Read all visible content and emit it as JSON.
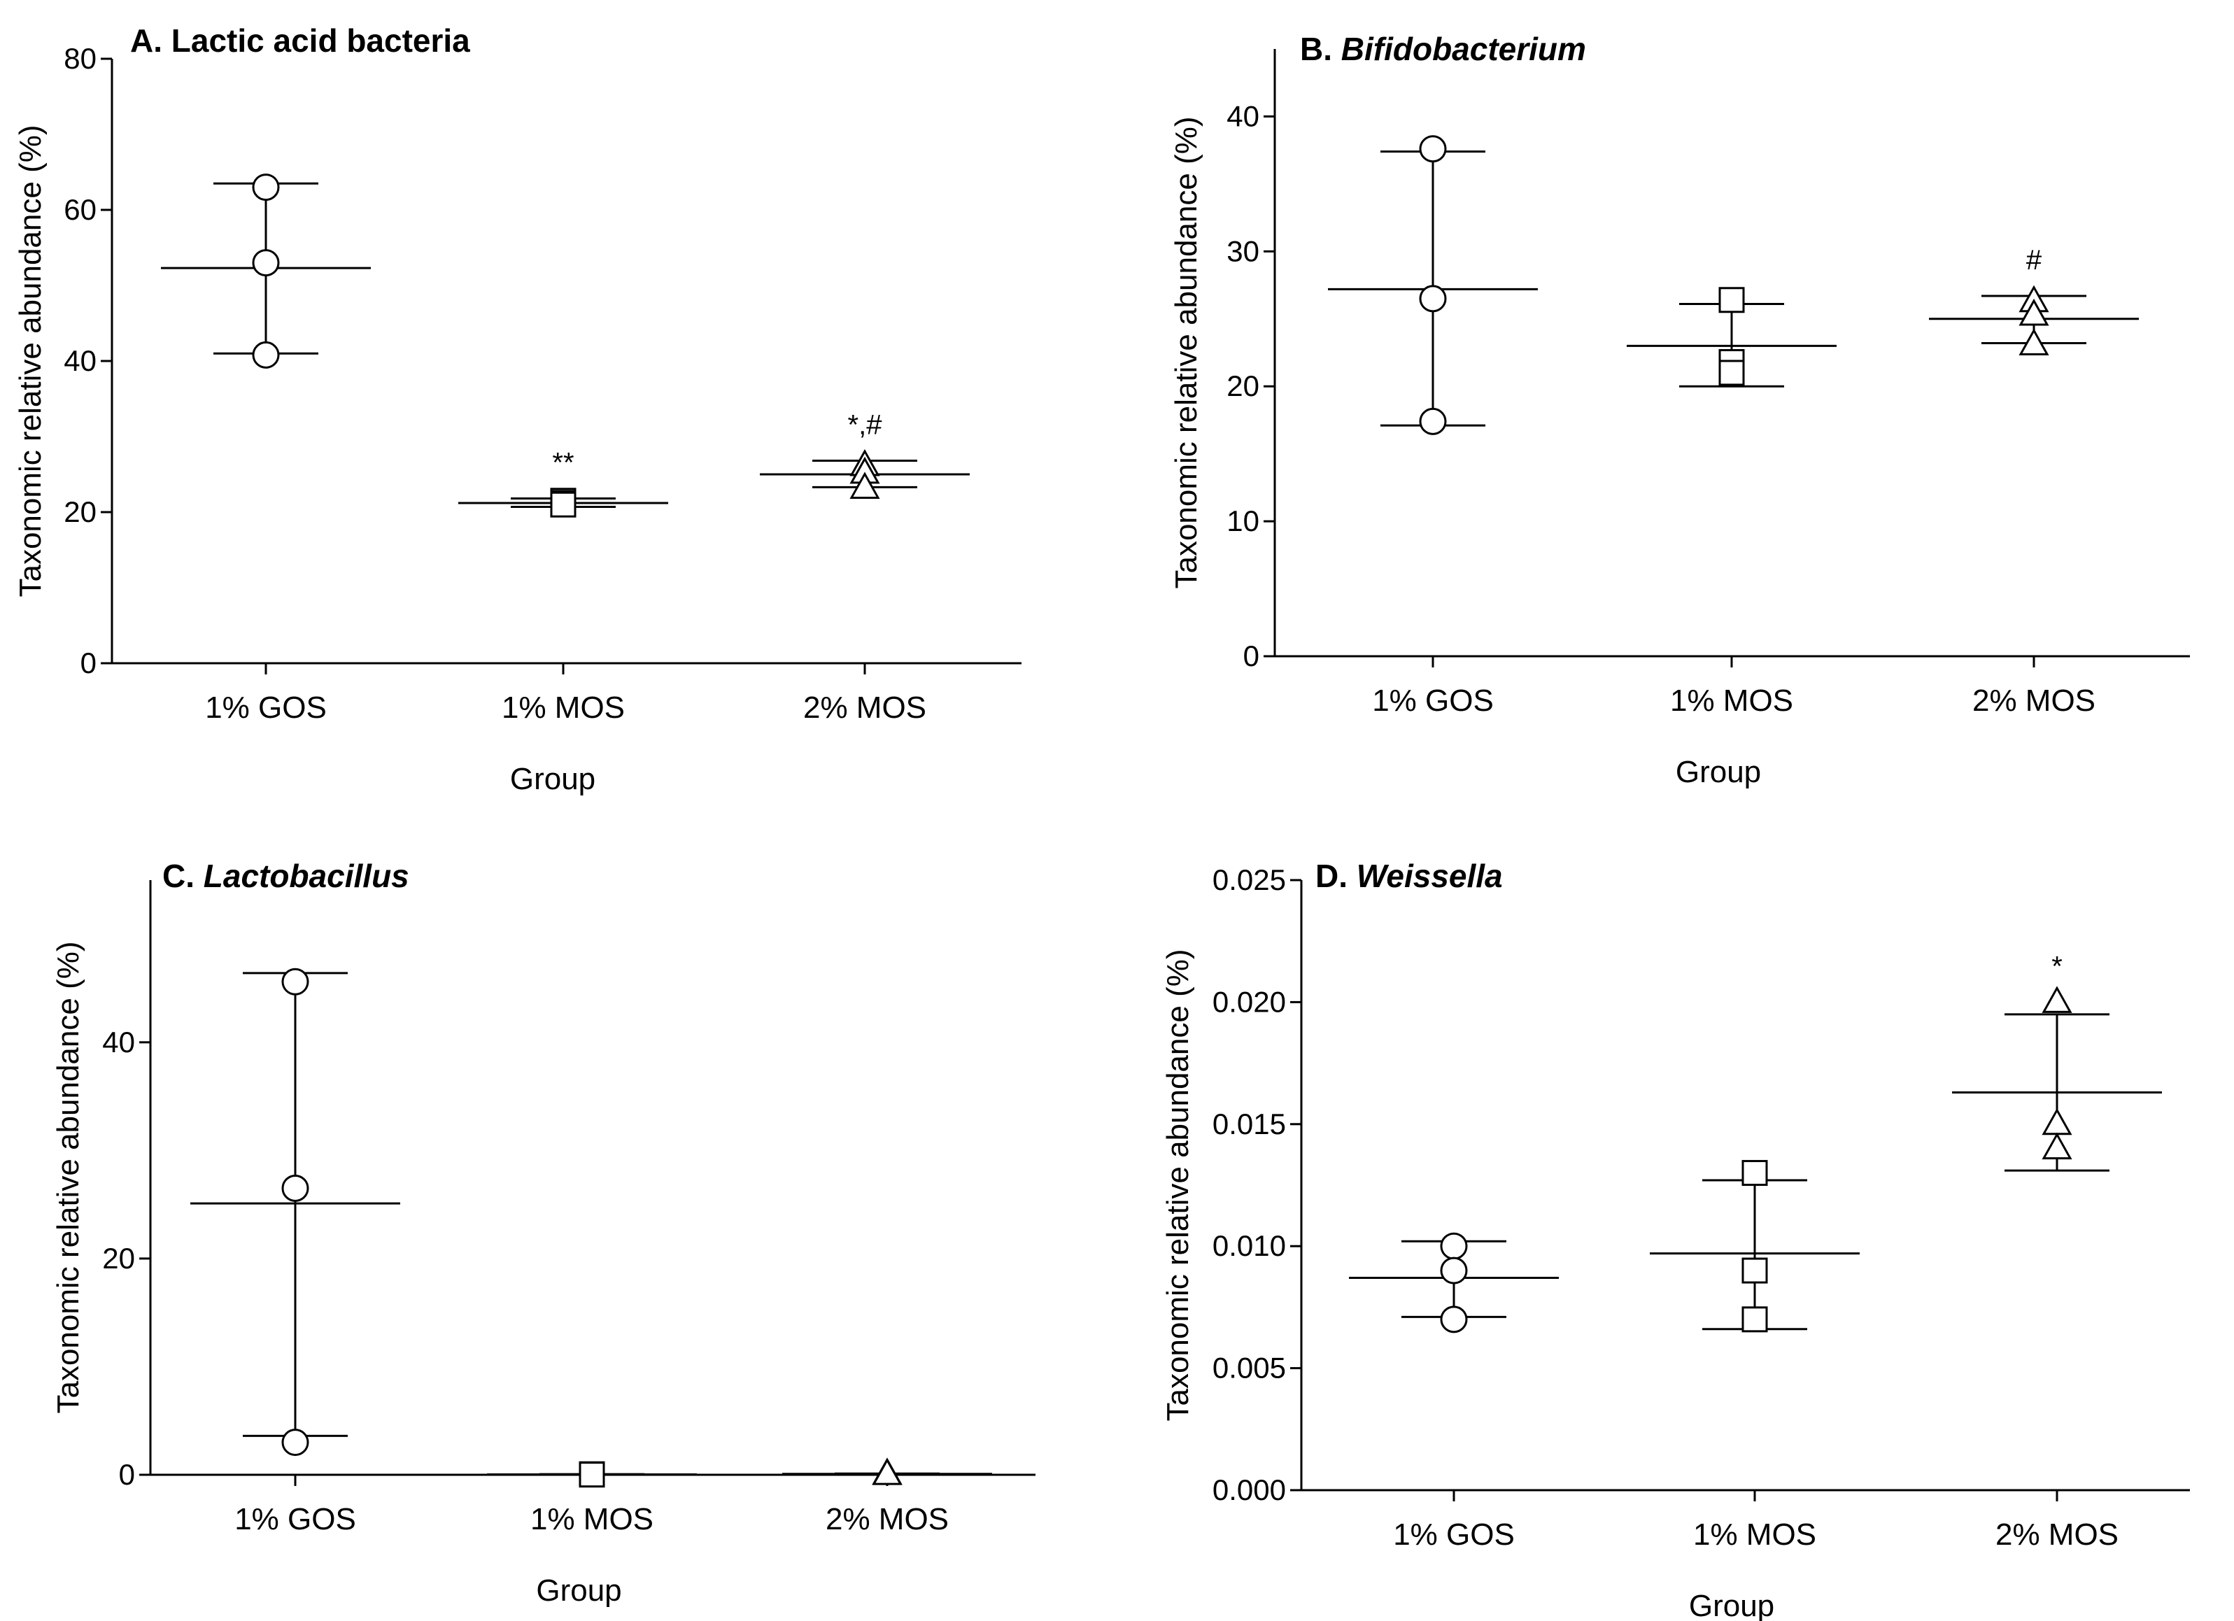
{
  "chart_data": [
    {
      "type": "scatter",
      "title_prefix": "A.",
      "title_main": "Lactic acid bacteria",
      "title_italic": false,
      "xlabel": "Group",
      "ylabel": "Taxonomic relative abundance (%)",
      "categories": [
        "1% GOS",
        "1% MOS",
        "2% MOS"
      ],
      "markers": [
        "circle",
        "square",
        "triangle"
      ],
      "ylim": [
        0,
        80
      ],
      "yticks": [
        0,
        20,
        40,
        60,
        80
      ],
      "tick_decimals": 0,
      "groups": [
        {
          "points": [
            63,
            53,
            40.8
          ],
          "mean": 52.3,
          "upper": 63.5,
          "lower": 41.0,
          "sig": ""
        },
        {
          "points": [
            21.5,
            21.2,
            21.0
          ],
          "mean": 21.2,
          "upper": 21.8,
          "lower": 20.7,
          "sig": "**"
        },
        {
          "points": [
            26.2,
            25.2,
            23.2
          ],
          "mean": 25.0,
          "upper": 26.8,
          "lower": 23.3,
          "sig": "*,#"
        }
      ]
    },
    {
      "type": "scatter",
      "title_prefix": "B.",
      "title_main": "Bifidobacterium",
      "title_italic": true,
      "xlabel": "Group",
      "ylabel": "Taxonomic relative abundance (%)",
      "categories": [
        "1% GOS",
        "1% MOS",
        "2% MOS"
      ],
      "markers": [
        "circle",
        "square",
        "triangle"
      ],
      "ylim": [
        0,
        45
      ],
      "yticks": [
        0,
        10,
        20,
        30,
        40
      ],
      "tick_decimals": 0,
      "groups": [
        {
          "points": [
            37.6,
            26.5,
            17.4
          ],
          "mean": 27.2,
          "upper": 37.4,
          "lower": 17.1,
          "sig": ""
        },
        {
          "points": [
            26.4,
            21.8,
            21.0
          ],
          "mean": 23.0,
          "upper": 26.1,
          "lower": 20.0,
          "sig": ""
        },
        {
          "points": [
            26.3,
            25.3,
            23.1
          ],
          "mean": 25.0,
          "upper": 26.7,
          "lower": 23.2,
          "sig": "#"
        }
      ]
    },
    {
      "type": "scatter",
      "title_prefix": "C.",
      "title_main": "Lactobacillus",
      "title_italic": true,
      "xlabel": "Group",
      "ylabel": "Taxonomic relative abundance (%)",
      "categories": [
        "1% GOS",
        "1% MOS",
        "2% MOS"
      ],
      "markers": [
        "circle",
        "square",
        "triangle"
      ],
      "ylim": [
        0,
        55
      ],
      "yticks": [
        0,
        20,
        40
      ],
      "tick_decimals": 0,
      "groups": [
        {
          "points": [
            45.6,
            26.5,
            3.0
          ],
          "mean": 25.1,
          "upper": 46.4,
          "lower": 3.6,
          "sig": ""
        },
        {
          "points": [
            0.05,
            0.03,
            0.02
          ],
          "mean": 0.03,
          "upper": 0.06,
          "lower": 0.01,
          "sig": ""
        },
        {
          "points": [
            0.1,
            0.08,
            0.06
          ],
          "mean": 0.08,
          "upper": 0.11,
          "lower": 0.05,
          "sig": ""
        }
      ]
    },
    {
      "type": "scatter",
      "title_prefix": "D.",
      "title_main": "Weissella",
      "title_italic": true,
      "xlabel": "Group",
      "ylabel": "Taxonomic relative abundance (%)",
      "categories": [
        "1% GOS",
        "1% MOS",
        "2% MOS"
      ],
      "markers": [
        "circle",
        "square",
        "triangle"
      ],
      "ylim": [
        0,
        0.025
      ],
      "yticks": [
        0.0,
        0.005,
        0.01,
        0.015,
        0.02,
        0.025
      ],
      "tick_decimals": 3,
      "groups": [
        {
          "points": [
            0.01,
            0.009,
            0.007
          ],
          "mean": 0.0087,
          "upper": 0.0102,
          "lower": 0.0071,
          "sig": ""
        },
        {
          "points": [
            0.013,
            0.009,
            0.007
          ],
          "mean": 0.0097,
          "upper": 0.0127,
          "lower": 0.0066,
          "sig": ""
        },
        {
          "points": [
            0.02,
            0.015,
            0.014
          ],
          "mean": 0.0163,
          "upper": 0.0195,
          "lower": 0.0131,
          "sig": "*"
        }
      ]
    }
  ]
}
